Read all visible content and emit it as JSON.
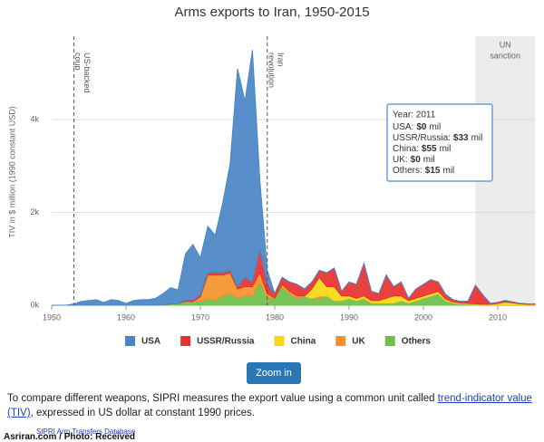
{
  "chart_data": {
    "type": "stacked-area",
    "title": "Arms exports to Iran, 1950-2015",
    "y_label": "TIV in $ million (1990 constant USD)",
    "x": [
      1950,
      1951,
      1952,
      1953,
      1954,
      1955,
      1956,
      1957,
      1958,
      1959,
      1960,
      1961,
      1962,
      1963,
      1964,
      1965,
      1966,
      1967,
      1968,
      1969,
      1970,
      1971,
      1972,
      1973,
      1974,
      1975,
      1976,
      1977,
      1978,
      1979,
      1980,
      1981,
      1982,
      1983,
      1984,
      1985,
      1986,
      1987,
      1988,
      1989,
      1990,
      1991,
      1992,
      1993,
      1994,
      1995,
      1996,
      1997,
      1998,
      1999,
      2000,
      2001,
      2002,
      2003,
      2004,
      2005,
      2006,
      2007,
      2008,
      2009,
      2010,
      2011,
      2012,
      2013,
      2014,
      2015
    ],
    "series": [
      {
        "name": "USA",
        "color": "#4a86c5",
        "values": [
          0,
          0,
          0,
          30,
          80,
          100,
          120,
          60,
          120,
          100,
          40,
          100,
          120,
          120,
          150,
          250,
          350,
          300,
          1000,
          1200,
          800,
          1000,
          800,
          1500,
          2300,
          4700,
          3800,
          5000,
          1500,
          300,
          0,
          0,
          0,
          0,
          0,
          0,
          0,
          0,
          0,
          0,
          0,
          0,
          0,
          0,
          0,
          0,
          0,
          0,
          0,
          0,
          0,
          0,
          0,
          0,
          0,
          0,
          0,
          0,
          0,
          0,
          0,
          0,
          0,
          0,
          0,
          0
        ]
      },
      {
        "name": "USSR/Russia",
        "color": "#e8312e",
        "values": [
          0,
          0,
          0,
          0,
          0,
          0,
          0,
          0,
          0,
          0,
          0,
          0,
          0,
          0,
          0,
          0,
          0,
          0,
          30,
          30,
          40,
          50,
          60,
          50,
          50,
          50,
          200,
          100,
          500,
          200,
          100,
          150,
          200,
          250,
          150,
          150,
          150,
          300,
          400,
          100,
          300,
          300,
          700,
          200,
          150,
          500,
          200,
          300,
          50,
          200,
          250,
          300,
          200,
          100,
          50,
          30,
          50,
          400,
          200,
          20,
          20,
          33,
          20,
          10,
          10,
          10
        ]
      },
      {
        "name": "China",
        "color": "#f5d915",
        "values": [
          0,
          0,
          0,
          0,
          0,
          0,
          0,
          0,
          0,
          0,
          0,
          0,
          0,
          0,
          0,
          0,
          0,
          0,
          0,
          0,
          0,
          0,
          0,
          0,
          0,
          0,
          0,
          0,
          0,
          0,
          0,
          0,
          0,
          0,
          0,
          200,
          400,
          200,
          300,
          100,
          50,
          50,
          50,
          50,
          50,
          100,
          150,
          100,
          50,
          50,
          50,
          50,
          50,
          30,
          20,
          20,
          20,
          10,
          10,
          10,
          30,
          55,
          40,
          20,
          10,
          10
        ]
      },
      {
        "name": "UK",
        "color": "#f49228",
        "values": [
          0,
          0,
          0,
          0,
          0,
          0,
          0,
          0,
          0,
          0,
          0,
          0,
          0,
          0,
          0,
          0,
          0,
          0,
          0,
          0,
          100,
          500,
          550,
          450,
          450,
          200,
          200,
          200,
          200,
          100,
          0,
          50,
          50,
          50,
          0,
          0,
          50,
          0,
          0,
          0,
          0,
          0,
          0,
          0,
          0,
          0,
          0,
          0,
          0,
          0,
          0,
          0,
          0,
          0,
          0,
          0,
          0,
          0,
          0,
          0,
          0,
          0,
          0,
          0,
          0,
          0
        ]
      },
      {
        "name": "Others",
        "color": "#6cbf4b",
        "values": [
          0,
          0,
          0,
          0,
          0,
          0,
          0,
          0,
          0,
          0,
          0,
          0,
          0,
          0,
          0,
          0,
          30,
          30,
          80,
          80,
          80,
          150,
          100,
          200,
          250,
          150,
          200,
          200,
          500,
          150,
          150,
          400,
          250,
          150,
          200,
          150,
          150,
          200,
          100,
          100,
          150,
          100,
          150,
          50,
          50,
          50,
          50,
          100,
          50,
          100,
          150,
          200,
          250,
          100,
          50,
          30,
          20,
          20,
          10,
          10,
          10,
          15,
          10,
          10,
          10,
          10
        ]
      }
    ],
    "xlim": [
      1950,
      2015
    ],
    "xticks": [
      1950,
      1960,
      1970,
      1980,
      1990,
      2000,
      2010
    ],
    "ylim": [
      0,
      5800
    ],
    "yticks": [
      {
        "value": 0,
        "label": "0k"
      },
      {
        "value": 2000,
        "label": "2k"
      },
      {
        "value": 4000,
        "label": "4k"
      }
    ],
    "grid": true,
    "annotations": [
      {
        "x": 1953,
        "lines": [
          "US-backed",
          "coup"
        ]
      },
      {
        "x": 1979,
        "lines": [
          "Iran",
          "revolution"
        ]
      }
    ],
    "band": {
      "from": 2007,
      "to": 2015,
      "label": [
        "UN",
        "sanction"
      ]
    },
    "tooltip": {
      "title": "Year: 2011",
      "items": [
        {
          "label": "USA:",
          "value": "$0",
          "unit": "mil"
        },
        {
          "label": "USSR/Russia:",
          "value": "$33",
          "unit": "mil"
        },
        {
          "label": "China:",
          "value": "$55",
          "unit": "mil"
        },
        {
          "label": "UK:",
          "value": "$0",
          "unit": "mil"
        },
        {
          "label": "Others:",
          "value": "$15",
          "unit": "mil"
        }
      ]
    }
  },
  "button": "Zoom in",
  "footer": {
    "before": "To compare different weapons, SIPRI measures the export value using a common unit called ",
    "link": "trend-indicator value (TIV)",
    "after": ", expressed in US dollar at constant 1990 prices."
  },
  "credits": [
    "SIPRI Arm Transfers Database",
    "Asriran.com / Photo: Received"
  ]
}
